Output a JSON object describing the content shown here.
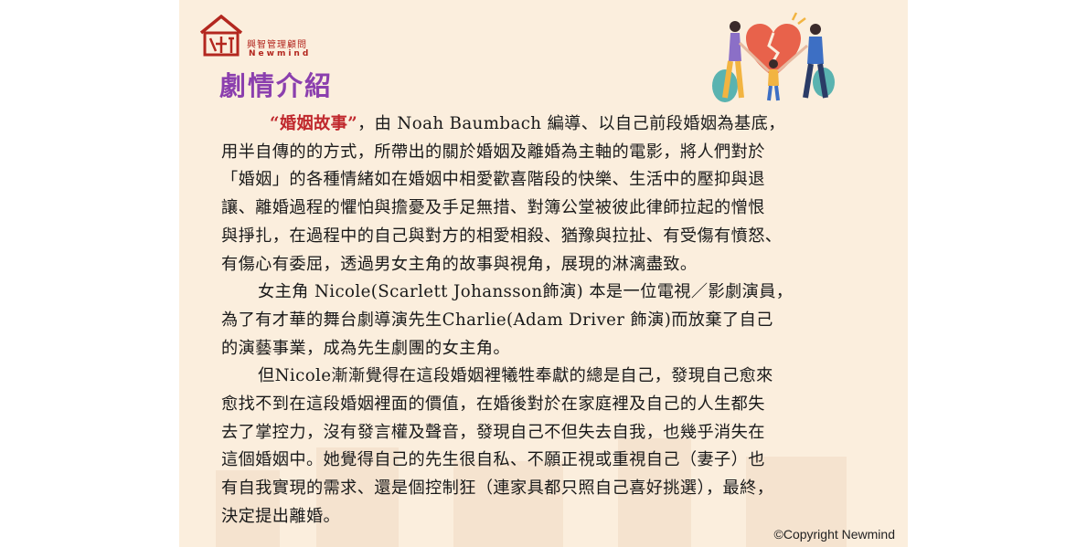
{
  "brand": {
    "name_cn": "興智管理顧問",
    "name_en": "Newmind"
  },
  "title": "劇情介紹",
  "highlight": "“婚姻故事”",
  "lines": [
    "，由 Noah Baumbach 編導、以自己前段婚姻為基底，",
    "用半自傳的的方式，所帶出的關於婚姻及離婚為主軸的電影，將人們對於",
    "「婚姻」的各種情緒如在婚姻中相愛歡喜階段的快樂、生活中的壓抑與退",
    "讓、離婚過程的懼怕與擔憂及手足無措、對簿公堂被彼此律師拉起的憎恨",
    "與掙扎，在過程中的自己與對方的相愛相殺、猶豫與拉扯、有受傷有憤怒、",
    "有傷心有委屈，透過男女主角的故事與視角，展現的淋漓盡致。",
    "女主角 Nicole(Scarlett Johansson飾演) 本是一位電視／影劇演員，",
    "為了有才華的舞台劇導演先生Charlie(Adam Driver 飾演)而放棄了自己",
    "的演藝事業，成為先生劇團的女主角。",
    "但Nicole漸漸覺得在這段婚姻裡犧牲奉獻的總是自己，發現自己愈來",
    "愈找不到在這段婚姻裡面的價值，在婚後對於在家庭裡及自己的人生都失",
    "去了掌控力，沒有發言權及聲音，發現自己不但失去自我，也幾乎消失在",
    "這個婚姻中。她覺得自己的先生很自私、不願正視或重視自己（妻子）也",
    "有自我實現的需求、還是個控制狂（連家具都只照自己喜好挑選），最終，",
    "決定提出離婚。"
  ],
  "copyright": "©Copyright Newmind",
  "icons": [
    "logo-mark-icon",
    "family-heart-illustration"
  ],
  "colors": {
    "title": "#8b3fae",
    "highlight": "#c0282d",
    "brand": "#b3271f",
    "background": "#fbeedd"
  }
}
